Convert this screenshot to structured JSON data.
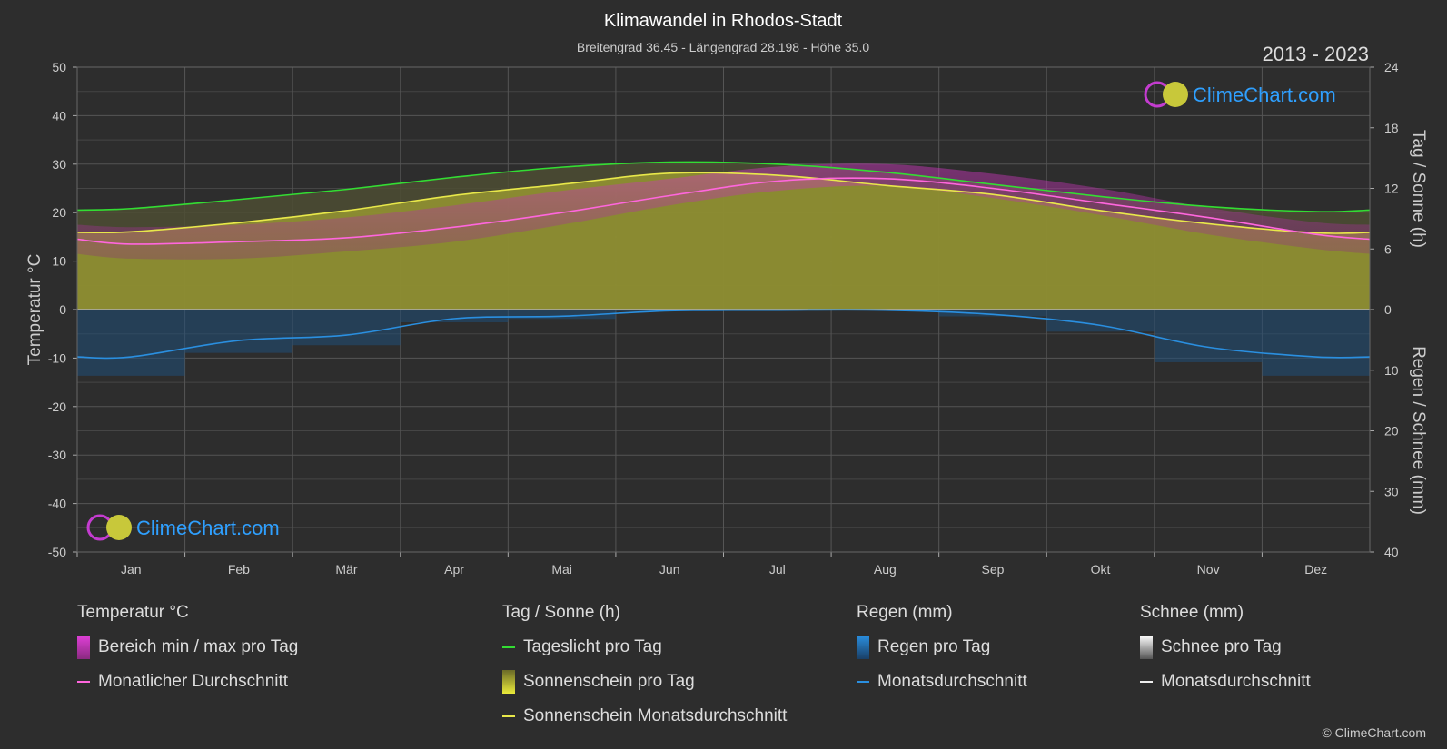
{
  "header": {
    "title": "Klimawandel in Rhodos-Stadt",
    "subtitle": "Breitengrad 36.45 - Längengrad 28.198 - Höhe 35.0",
    "year_range": "2013 - 2023"
  },
  "logo": {
    "text": "ClimeChart.com"
  },
  "copyright": "© ClimeChart.com",
  "chart_data": {
    "type": "area",
    "categories": [
      "Jan",
      "Feb",
      "Mär",
      "Apr",
      "Mai",
      "Jun",
      "Jul",
      "Aug",
      "Sep",
      "Okt",
      "Nov",
      "Dez"
    ],
    "axes": {
      "left": {
        "label": "Temperatur °C",
        "range": [
          -50,
          50
        ],
        "ticks": [
          50,
          40,
          30,
          20,
          10,
          0,
          -10,
          -20,
          -30,
          -40,
          -50
        ]
      },
      "right_top": {
        "label": "Tag / Sonne (h)",
        "range": [
          0,
          24
        ],
        "ticks": [
          24,
          18,
          12,
          6,
          0
        ]
      },
      "right_bottom": {
        "label": "Regen / Schnee (mm)",
        "range": [
          0,
          40
        ],
        "ticks": [
          0,
          10,
          20,
          30,
          40
        ]
      }
    },
    "grid": true,
    "series": [
      {
        "name": "Tageslicht pro Tag",
        "axis": "sun_h",
        "color": "#33dd33",
        "values": [
          10.0,
          10.9,
          11.9,
          13.1,
          14.1,
          14.6,
          14.4,
          13.6,
          12.4,
          11.2,
          10.2,
          9.7
        ]
      },
      {
        "name": "Sonnenschein Monatsdurchschnitt",
        "axis": "sun_h",
        "color": "#e8e84a",
        "values": [
          7.7,
          8.6,
          9.8,
          11.3,
          12.4,
          13.5,
          13.3,
          12.3,
          11.4,
          9.8,
          8.5,
          7.6
        ]
      },
      {
        "name": "Monatlicher Durchschnitt",
        "axis": "temp_c",
        "color": "#ff66dd",
        "values": [
          13.5,
          14.0,
          14.8,
          17.0,
          20.0,
          23.5,
          26.5,
          27.0,
          25.0,
          22.0,
          19.0,
          15.5
        ]
      },
      {
        "name": "Bereich min / max pro Tag",
        "axis": "temp_c",
        "color": "#c02bb8",
        "min": [
          10.5,
          10.5,
          12.0,
          14.0,
          17.5,
          21.5,
          24.5,
          25.5,
          23.0,
          19.5,
          15.5,
          12.5
        ],
        "max": [
          17.0,
          17.5,
          19.0,
          21.5,
          24.5,
          27.0,
          29.5,
          30.0,
          28.0,
          25.0,
          21.0,
          18.0
        ]
      },
      {
        "name": "Monatsdurchschnitt",
        "axis": "rain_mm",
        "color": "#2a8fe0",
        "values": [
          7.8,
          5.1,
          4.2,
          1.5,
          1.1,
          0.2,
          0.1,
          0.1,
          0.8,
          2.6,
          6.2,
          7.8
        ]
      }
    ]
  },
  "legend": {
    "temperature": {
      "title": "Temperatur °C",
      "items": [
        {
          "label": "Bereich min / max pro Tag",
          "swatch": "box",
          "color": "#d030c8"
        },
        {
          "label": "Monatlicher Durchschnitt",
          "swatch": "line",
          "color": "#ff66dd"
        }
      ]
    },
    "sun": {
      "title": "Tag / Sonne (h)",
      "items": [
        {
          "label": "Tageslicht pro Tag",
          "swatch": "line",
          "color": "#33dd33"
        },
        {
          "label": "Sonnenschein pro Tag",
          "swatch": "box",
          "color": "#d8d835"
        },
        {
          "label": "Sonnenschein Monatsdurchschnitt",
          "swatch": "line",
          "color": "#e8e84a"
        }
      ]
    },
    "rain": {
      "title": "Regen (mm)",
      "items": [
        {
          "label": "Regen pro Tag",
          "swatch": "box",
          "color": "#2a8fe0"
        },
        {
          "label": "Monatsdurchschnitt",
          "swatch": "line",
          "color": "#2a8fe0"
        }
      ]
    },
    "snow": {
      "title": "Schnee (mm)",
      "items": [
        {
          "label": "Schnee pro Tag",
          "swatch": "box",
          "color": "#dddddd"
        },
        {
          "label": "Monatsdurchschnitt",
          "swatch": "line",
          "color": "#eeeeee"
        }
      ]
    }
  }
}
